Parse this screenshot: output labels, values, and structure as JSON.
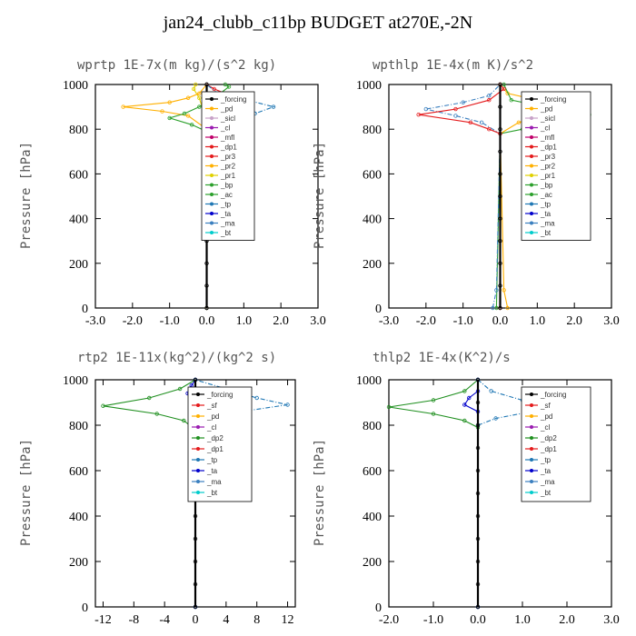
{
  "figure": {
    "title": "jan24_clubb_c11bp  BUDGET at270E,-2N"
  },
  "colors": {
    "forcing": "#000000",
    "sicl": "#c8a2c8",
    "cl": "#9a1bb0",
    "mfl": "#c0006a",
    "sf": "#e41a1c",
    "pd": "#ffb000",
    "dp1": "#e41a1c",
    "dp2": "#1f8f1f",
    "pr3": "#e41a1c",
    "pr2": "#ffb000",
    "pr1": "#e0d000",
    "bp": "#2ca02c",
    "ac": "#2ca02c",
    "tp": "#1f77b4",
    "ta": "#0000cc",
    "ma": "#3a7fbf",
    "bt": "#00cccc"
  },
  "chart_data": [
    {
      "type": "line",
      "title": "wprtp  1E-7x(m kg)/(s^2 kg)",
      "ylabel": "Pressure [hPa]",
      "xlim": [
        -3.0,
        3.0
      ],
      "ylim": [
        1000,
        0
      ],
      "xticks": [
        "-3.0",
        "-2.0",
        "-1.0",
        "0.0",
        "1.0",
        "2.0",
        "3.0"
      ],
      "xtick_values": [
        -3,
        -2,
        -1,
        0,
        1,
        2,
        3
      ],
      "yticks": [
        "0",
        "200",
        "400",
        "600",
        "800",
        "1000"
      ],
      "ytick_values": [
        0,
        200,
        400,
        600,
        800,
        1000
      ],
      "legend": [
        "_forcing",
        "_pd",
        "_sicl",
        "_cl",
        "_mfl",
        "_dp1",
        "_pr3",
        "_pr2",
        "_pr1",
        "_bp",
        "_ac",
        "_tp",
        "_ta",
        "_ma",
        "_bt"
      ],
      "legend_keys": [
        "forcing",
        "pd",
        "sicl",
        "cl",
        "mfl",
        "dp1",
        "pr3",
        "pr2",
        "pr1",
        "bp",
        "ac",
        "tp",
        "ta",
        "ma",
        "bt"
      ],
      "series": [
        {
          "key": "pr1",
          "points": [
            [
              0,
              0
            ],
            [
              0,
              780
            ],
            [
              -0.05,
              860
            ],
            [
              -0.2,
              940
            ],
            [
              -0.35,
              980
            ],
            [
              -0.3,
              1000
            ]
          ]
        },
        {
          "key": "pr2",
          "points": [
            [
              0,
              0
            ],
            [
              0,
              800
            ],
            [
              -0.5,
              860
            ],
            [
              -1.2,
              880
            ],
            [
              -2.25,
              900
            ],
            [
              -1.0,
              920
            ],
            [
              -0.5,
              940
            ],
            [
              -0.2,
              960
            ],
            [
              0,
              1000
            ]
          ]
        },
        {
          "key": "bp",
          "points": [
            [
              0,
              0
            ],
            [
              0,
              790
            ],
            [
              -0.4,
              820
            ],
            [
              -1.0,
              850
            ],
            [
              -0.6,
              870
            ],
            [
              -0.2,
              900
            ],
            [
              0.2,
              940
            ],
            [
              0.6,
              990
            ],
            [
              0.5,
              1000
            ]
          ]
        },
        {
          "key": "dp1",
          "points": [
            [
              0,
              0
            ],
            [
              0,
              790
            ],
            [
              0.5,
              810
            ],
            [
              1.1,
              830
            ],
            [
              0.6,
              860
            ],
            [
              0.3,
              890
            ],
            [
              0.8,
              940
            ],
            [
              0.2,
              980
            ],
            [
              0,
              1000
            ]
          ]
        },
        {
          "key": "tp",
          "points": [
            [
              0,
              0
            ],
            [
              0,
              820
            ],
            [
              0.7,
              850
            ],
            [
              1.3,
              870
            ],
            [
              1.8,
              900
            ],
            [
              1.1,
              930
            ],
            [
              0.3,
              960
            ],
            [
              0,
              1000
            ]
          ]
        },
        {
          "key": "forcing",
          "points": [
            [
              0,
              0
            ],
            [
              0,
              100
            ],
            [
              0,
              200
            ],
            [
              0,
              300
            ],
            [
              0,
              400
            ],
            [
              0,
              500
            ],
            [
              0,
              600
            ],
            [
              0,
              700
            ],
            [
              0,
              800
            ],
            [
              0,
              900
            ],
            [
              0,
              1000
            ]
          ]
        }
      ]
    },
    {
      "type": "line",
      "title": "wpthlp  1E-4x(m K)/s^2",
      "ylabel": "Pressure [hPa]",
      "xlim": [
        -3.0,
        3.0
      ],
      "ylim": [
        1000,
        0
      ],
      "xticks": [
        "-3.0",
        "-2.0",
        "-1.0",
        "0.0",
        "1.0",
        "2.0",
        "3.0"
      ],
      "xtick_values": [
        -3,
        -2,
        -1,
        0,
        1,
        2,
        3
      ],
      "yticks": [
        "0",
        "200",
        "400",
        "600",
        "800",
        "1000"
      ],
      "ytick_values": [
        0,
        200,
        400,
        600,
        800,
        1000
      ],
      "legend": [
        "_forcing",
        "_pd",
        "_sicl",
        "_cl",
        "_mfl",
        "_dp1",
        "_pr3",
        "_pr2",
        "_pr1",
        "_bp",
        "_ac",
        "_tp",
        "_ta",
        "_ma",
        "_bt"
      ],
      "legend_keys": [
        "forcing",
        "pd",
        "sicl",
        "cl",
        "mfl",
        "dp1",
        "pr3",
        "pr2",
        "pr1",
        "bp",
        "ac",
        "tp",
        "ta",
        "ma",
        "bt"
      ],
      "series": [
        {
          "key": "pr2",
          "points": [
            [
              0.2,
              0
            ],
            [
              0.1,
              80
            ],
            [
              0,
              780
            ],
            [
              0.5,
              830
            ],
            [
              1.2,
              860
            ],
            [
              2.1,
              900
            ],
            [
              1.0,
              930
            ],
            [
              0.2,
              960
            ],
            [
              0,
              1000
            ]
          ]
        },
        {
          "key": "bp",
          "points": [
            [
              -0.1,
              0
            ],
            [
              0,
              780
            ],
            [
              0.6,
              800
            ],
            [
              1.5,
              830
            ],
            [
              2.4,
              865
            ],
            [
              1.2,
              900
            ],
            [
              0.3,
              930
            ],
            [
              0.1,
              1000
            ]
          ]
        },
        {
          "key": "ma",
          "points": [
            [
              -0.2,
              0
            ],
            [
              -0.1,
              80
            ],
            [
              0,
              780
            ],
            [
              -0.5,
              830
            ],
            [
              -1.2,
              860
            ],
            [
              -2.0,
              890
            ],
            [
              -1.0,
              920
            ],
            [
              -0.3,
              950
            ],
            [
              0,
              1000
            ]
          ]
        },
        {
          "key": "dp1",
          "points": [
            [
              0,
              0
            ],
            [
              0,
              780
            ],
            [
              -0.3,
              800
            ],
            [
              -0.8,
              830
            ],
            [
              -2.2,
              865
            ],
            [
              -1.2,
              890
            ],
            [
              -0.3,
              930
            ],
            [
              0.1,
              980
            ],
            [
              0,
              1000
            ]
          ]
        },
        {
          "key": "forcing",
          "points": [
            [
              0,
              0
            ],
            [
              0,
              100
            ],
            [
              0,
              200
            ],
            [
              0,
              300
            ],
            [
              0,
              400
            ],
            [
              0,
              500
            ],
            [
              0,
              600
            ],
            [
              0,
              700
            ],
            [
              0,
              800
            ],
            [
              0,
              900
            ],
            [
              0,
              1000
            ]
          ]
        }
      ]
    },
    {
      "type": "line",
      "title": "rtp2  1E-11x(kg^2)/(kg^2 s)",
      "ylabel": "Pressure [hPa]",
      "xlim": [
        -13,
        13
      ],
      "ylim": [
        1000,
        0
      ],
      "xticks": [
        "-12",
        "-8",
        "-4",
        "0",
        "4",
        "8",
        "12"
      ],
      "xtick_values": [
        -12,
        -8,
        -4,
        0,
        4,
        8,
        12
      ],
      "yticks": [
        "0",
        "200",
        "400",
        "600",
        "800",
        "1000"
      ],
      "ytick_values": [
        0,
        200,
        400,
        600,
        800,
        1000
      ],
      "legend": [
        "_forcing",
        "_sf",
        "_pd",
        "_cl",
        "_dp2",
        "_dp1",
        "_tp",
        "_ta",
        "_ma",
        "_bt"
      ],
      "legend_keys": [
        "forcing",
        "sf",
        "pd",
        "cl",
        "dp2",
        "dp1",
        "tp",
        "ta",
        "ma",
        "bt"
      ],
      "series": [
        {
          "key": "dp2",
          "points": [
            [
              0,
              0
            ],
            [
              0,
              780
            ],
            [
              -1.5,
              820
            ],
            [
              -5,
              850
            ],
            [
              -12,
              885
            ],
            [
              -6,
              920
            ],
            [
              -2,
              960
            ],
            [
              0,
              1000
            ]
          ]
        },
        {
          "key": "tp",
          "points": [
            [
              0,
              0
            ],
            [
              0,
              800
            ],
            [
              2,
              830
            ],
            [
              6,
              860
            ],
            [
              12,
              890
            ],
            [
              8,
              920
            ],
            [
              4,
              960
            ],
            [
              0,
              1000
            ]
          ]
        },
        {
          "key": "ta",
          "points": [
            [
              0,
              0
            ],
            [
              0,
              900
            ],
            [
              -1,
              940
            ],
            [
              -0.5,
              975
            ],
            [
              0,
              1000
            ]
          ]
        },
        {
          "key": "forcing",
          "points": [
            [
              0,
              0
            ],
            [
              0,
              100
            ],
            [
              0,
              200
            ],
            [
              0,
              300
            ],
            [
              0,
              400
            ],
            [
              0,
              500
            ],
            [
              0,
              600
            ],
            [
              0,
              700
            ],
            [
              0,
              800
            ],
            [
              0,
              900
            ],
            [
              0,
              1000
            ]
          ]
        }
      ]
    },
    {
      "type": "line",
      "title": "thlp2  1E-4x(K^2)/s",
      "ylabel": "Pressure [hPa]",
      "xlim": [
        -2.0,
        3.0
      ],
      "ylim": [
        1000,
        0
      ],
      "xticks": [
        "-2.0",
        "-1.0",
        "0.0",
        "1.0",
        "2.0",
        "3.0"
      ],
      "xtick_values": [
        -2,
        -1,
        0,
        1,
        2,
        3
      ],
      "yticks": [
        "0",
        "200",
        "400",
        "600",
        "800",
        "1000"
      ],
      "ytick_values": [
        0,
        200,
        400,
        600,
        800,
        1000
      ],
      "legend": [
        "_forcing",
        "_sf",
        "_pd",
        "_cl",
        "_dp2",
        "_dp1",
        "_tp",
        "_ta",
        "_ma",
        "_bt"
      ],
      "legend_keys": [
        "forcing",
        "sf",
        "pd",
        "cl",
        "dp2",
        "dp1",
        "tp",
        "ta",
        "ma",
        "bt"
      ],
      "series": [
        {
          "key": "dp2",
          "points": [
            [
              0,
              0
            ],
            [
              0,
              790
            ],
            [
              -0.3,
              820
            ],
            [
              -1.0,
              850
            ],
            [
              -2.0,
              880
            ],
            [
              -1.0,
              910
            ],
            [
              -0.3,
              950
            ],
            [
              0,
              1000
            ]
          ]
        },
        {
          "key": "tp",
          "points": [
            [
              0,
              0
            ],
            [
              0,
              800
            ],
            [
              0.4,
              830
            ],
            [
              1.2,
              860
            ],
            [
              2.1,
              880
            ],
            [
              1.0,
              910
            ],
            [
              0.3,
              950
            ],
            [
              0,
              1000
            ]
          ]
        },
        {
          "key": "ta",
          "points": [
            [
              0,
              0
            ],
            [
              0,
              860
            ],
            [
              -0.3,
              890
            ],
            [
              -0.2,
              920
            ],
            [
              0,
              950
            ],
            [
              0,
              1000
            ]
          ]
        },
        {
          "key": "forcing",
          "points": [
            [
              0,
              0
            ],
            [
              0,
              100
            ],
            [
              0,
              200
            ],
            [
              0,
              300
            ],
            [
              0,
              400
            ],
            [
              0,
              500
            ],
            [
              0,
              600
            ],
            [
              0,
              700
            ],
            [
              0,
              800
            ],
            [
              0,
              900
            ],
            [
              0,
              1000
            ]
          ]
        }
      ]
    }
  ]
}
